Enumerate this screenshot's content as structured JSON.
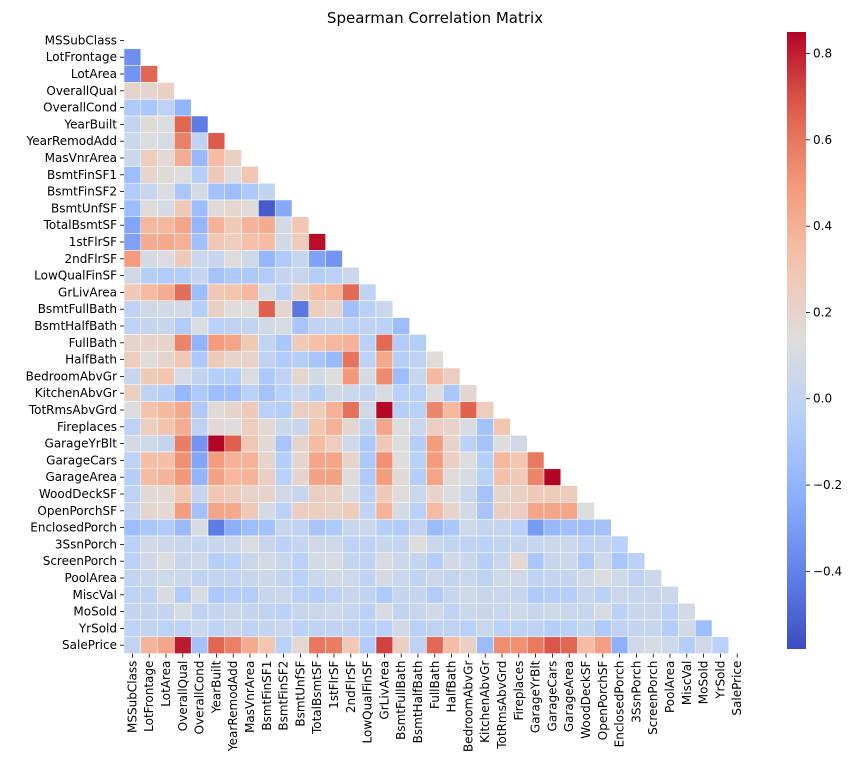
{
  "chart_data": {
    "type": "heatmap",
    "title": "Spearman Correlation Matrix",
    "mask": "upper-triangle-and-diagonal",
    "colormap": "coolwarm",
    "value_range": [
      -0.58,
      0.85
    ],
    "colorbar_ticks": [
      -0.4,
      -0.2,
      0.0,
      0.2,
      0.4,
      0.6,
      0.8
    ],
    "colorbar_tick_labels": [
      "−0.4",
      "−0.2",
      "0.0",
      "0.2",
      "0.4",
      "0.6",
      "0.8"
    ],
    "labels": [
      "MSSubClass",
      "LotFrontage",
      "LotArea",
      "OverallQual",
      "OverallCond",
      "YearBuilt",
      "YearRemodAdd",
      "MasVnrArea",
      "BsmtFinSF1",
      "BsmtFinSF2",
      "BsmtUnfSF",
      "TotalBsmtSF",
      "1stFlrSF",
      "2ndFlrSF",
      "LowQualFinSF",
      "GrLivArea",
      "BsmtFullBath",
      "BsmtHalfBath",
      "FullBath",
      "HalfBath",
      "BedroomAbvGr",
      "KitchenAbvGr",
      "TotRmsAbvGrd",
      "Fireplaces",
      "GarageYrBlt",
      "GarageCars",
      "GarageArea",
      "WoodDeckSF",
      "OpenPorchSF",
      "EnclosedPorch",
      "3SsnPorch",
      "ScreenPorch",
      "PoolArea",
      "MiscVal",
      "MoSold",
      "YrSold",
      "SalePrice"
    ],
    "rows": [
      [],
      [
        -0.35
      ],
      [
        -0.33,
        0.65
      ],
      [
        0.2,
        0.2,
        0.23
      ],
      [
        -0.08,
        -0.1,
        -0.02,
        -0.2
      ],
      [
        0.01,
        0.16,
        0.12,
        0.65,
        -0.42
      ],
      [
        0.05,
        0.12,
        0.1,
        0.57,
        0.0,
        0.68
      ],
      [
        0.05,
        0.25,
        0.17,
        0.41,
        -0.17,
        0.35,
        0.23
      ],
      [
        -0.15,
        0.19,
        0.16,
        0.14,
        -0.05,
        0.28,
        0.14,
        0.3
      ],
      [
        -0.07,
        0.03,
        0.12,
        -0.1,
        0.09,
        -0.13,
        -0.15,
        -0.09,
        0.0
      ],
      [
        -0.15,
        0.15,
        0.09,
        0.28,
        -0.15,
        0.16,
        0.19,
        0.15,
        -0.53,
        -0.25
      ],
      [
        -0.27,
        0.37,
        0.37,
        0.45,
        -0.19,
        0.39,
        0.27,
        0.38,
        0.42,
        0.09,
        0.3
      ],
      [
        -0.28,
        0.42,
        0.43,
        0.4,
        -0.14,
        0.29,
        0.25,
        0.33,
        0.35,
        0.08,
        0.26,
        0.83
      ],
      [
        0.48,
        0.09,
        0.12,
        0.27,
        0.04,
        0.03,
        0.15,
        0.06,
        -0.19,
        -0.08,
        0.03,
        -0.28,
        -0.33
      ],
      [
        0.07,
        -0.05,
        -0.07,
        -0.06,
        0.02,
        -0.12,
        -0.08,
        -0.09,
        -0.07,
        0.02,
        0.03,
        -0.06,
        -0.03,
        0.05
      ],
      [
        0.27,
        0.35,
        0.41,
        0.63,
        -0.15,
        0.29,
        0.31,
        0.37,
        0.1,
        -0.03,
        0.23,
        0.34,
        0.37,
        0.64,
        0.0
      ],
      [
        -0.01,
        0.07,
        0.08,
        0.09,
        -0.05,
        0.23,
        0.14,
        0.14,
        0.67,
        0.19,
        -0.44,
        0.25,
        0.2,
        -0.14,
        -0.04,
        0.04
      ],
      [
        -0.01,
        0.02,
        0.03,
        -0.07,
        0.12,
        -0.04,
        -0.01,
        0.01,
        0.08,
        0.1,
        -0.11,
        0.0,
        0.01,
        -0.04,
        -0.01,
        -0.03,
        -0.15
      ],
      [
        0.2,
        0.21,
        0.2,
        0.56,
        -0.2,
        0.49,
        0.45,
        0.28,
        0.01,
        -0.1,
        0.27,
        0.33,
        0.37,
        0.39,
        -0.04,
        0.64,
        -0.07,
        -0.06
      ],
      [
        0.25,
        0.15,
        0.2,
        0.29,
        -0.09,
        0.27,
        0.21,
        0.22,
        -0.01,
        -0.07,
        -0.06,
        -0.11,
        -0.17,
        0.61,
        -0.02,
        0.43,
        -0.05,
        -0.02,
        0.15
      ],
      [
        0.03,
        0.27,
        0.31,
        0.1,
        0.0,
        -0.05,
        -0.05,
        0.12,
        -0.09,
        -0.01,
        0.19,
        0.08,
        0.14,
        0.5,
        0.09,
        0.54,
        -0.15,
        0.03,
        0.36,
        0.24
      ],
      [
        0.23,
        -0.02,
        -0.05,
        -0.18,
        -0.08,
        -0.15,
        -0.14,
        -0.04,
        -0.12,
        -0.04,
        0.04,
        -0.05,
        0.07,
        0.05,
        0.01,
        0.1,
        -0.04,
        -0.04,
        0.14,
        -0.1,
        0.19
      ],
      [
        0.12,
        0.32,
        0.36,
        0.43,
        -0.08,
        0.16,
        0.2,
        0.27,
        -0.04,
        -0.06,
        0.24,
        0.26,
        0.39,
        0.62,
        0.07,
        0.84,
        -0.05,
        -0.04,
        0.55,
        0.36,
        0.66,
        0.25
      ],
      [
        -0.02,
        0.25,
        0.32,
        0.41,
        -0.02,
        0.17,
        0.14,
        0.25,
        0.17,
        0.05,
        0.03,
        0.3,
        0.4,
        0.19,
        0.0,
        0.44,
        0.13,
        0.04,
        0.24,
        0.21,
        0.11,
        -0.13,
        0.31
      ],
      [
        0.09,
        0.06,
        0.01,
        0.58,
        -0.33,
        0.85,
        0.67,
        0.28,
        0.17,
        -0.11,
        0.2,
        0.35,
        0.25,
        0.06,
        -0.09,
        0.28,
        0.13,
        -0.05,
        0.48,
        0.21,
        -0.03,
        -0.12,
        0.14,
        0.07
      ],
      [
        -0.01,
        0.34,
        0.34,
        0.52,
        -0.26,
        0.48,
        0.39,
        0.38,
        0.21,
        -0.06,
        0.19,
        0.44,
        0.44,
        0.21,
        -0.09,
        0.52,
        0.14,
        -0.04,
        0.49,
        0.23,
        0.14,
        -0.05,
        0.37,
        0.3,
        0.59
      ],
      [
        -0.05,
        0.35,
        0.38,
        0.5,
        -0.2,
        0.46,
        0.37,
        0.38,
        0.24,
        -0.04,
        0.2,
        0.46,
        0.46,
        0.15,
        -0.08,
        0.48,
        0.16,
        -0.06,
        0.45,
        0.15,
        0.1,
        -0.04,
        0.33,
        0.27,
        0.56,
        0.85
      ],
      [
        -0.02,
        0.16,
        0.17,
        0.3,
        0.02,
        0.29,
        0.26,
        0.21,
        0.2,
        0.07,
        0.03,
        0.24,
        0.23,
        0.11,
        -0.03,
        0.27,
        0.15,
        0.04,
        0.21,
        0.12,
        0.04,
        -0.12,
        0.19,
        0.23,
        0.27,
        0.26,
        0.26
      ],
      [
        0.02,
        0.19,
        0.17,
        0.48,
        -0.13,
        0.45,
        0.43,
        0.28,
        0.09,
        -0.03,
        0.24,
        0.25,
        0.22,
        0.26,
        0.0,
        0.38,
        0.09,
        -0.04,
        0.35,
        0.2,
        0.08,
        -0.11,
        0.24,
        0.24,
        0.44,
        0.45,
        0.44,
        0.13
      ],
      [
        -0.15,
        -0.1,
        -0.07,
        -0.16,
        0.11,
        -0.42,
        -0.23,
        -0.15,
        -0.13,
        0.03,
        0.0,
        -0.11,
        -0.08,
        0.03,
        0.05,
        -0.05,
        -0.07,
        -0.01,
        -0.16,
        -0.1,
        0.06,
        0.02,
        0.02,
        -0.03,
        -0.31,
        -0.18,
        -0.14,
        -0.14,
        -0.13
      ],
      [
        -0.04,
        0.08,
        0.05,
        0.03,
        0.02,
        0.03,
        0.05,
        0.12,
        0.03,
        -0.03,
        0.02,
        0.07,
        0.06,
        -0.02,
        -0.01,
        0.03,
        0.02,
        0.14,
        0.04,
        0.01,
        -0.02,
        -0.03,
        0.01,
        0.02,
        0.03,
        0.05,
        0.05,
        -0.02,
        0.01,
        -0.04
      ],
      [
        -0.03,
        0.07,
        0.12,
        0.03,
        0.07,
        -0.05,
        -0.04,
        0.04,
        0.09,
        0.04,
        -0.04,
        0.09,
        0.1,
        0.01,
        0.0,
        0.1,
        0.05,
        0.02,
        -0.06,
        0.08,
        0.04,
        -0.05,
        0.04,
        0.18,
        -0.1,
        0.03,
        0.05,
        -0.08,
        0.06,
        -0.1,
        -0.03
      ],
      [
        0.01,
        0.05,
        0.06,
        0.05,
        0.0,
        0.01,
        0.01,
        0.03,
        0.05,
        0.02,
        -0.03,
        0.05,
        0.08,
        0.06,
        0.0,
        0.09,
        0.04,
        0.0,
        0.04,
        0.01,
        0.04,
        -0.01,
        0.06,
        0.07,
        0.0,
        0.02,
        0.02,
        0.07,
        0.12,
        0.06,
        -0.01,
        0.05
      ],
      [
        -0.02,
        0.0,
        0.11,
        -0.07,
        0.11,
        -0.09,
        -0.06,
        -0.06,
        0.03,
        0.05,
        -0.04,
        -0.06,
        -0.01,
        0.03,
        0.0,
        -0.08,
        0.02,
        0.02,
        -0.07,
        0.03,
        0.06,
        0.03,
        0.04,
        0.03,
        -0.08,
        -0.06,
        -0.05,
        0.03,
        -0.03,
        0.04,
        0.03,
        0.03,
        0.04
      ],
      [
        0.02,
        0.02,
        0.02,
        0.1,
        -0.01,
        0.02,
        0.04,
        0.02,
        -0.01,
        -0.03,
        0.03,
        0.04,
        0.06,
        0.03,
        -0.03,
        0.1,
        0.0,
        0.03,
        0.08,
        0.0,
        0.05,
        0.03,
        0.04,
        0.06,
        0.03,
        0.06,
        0.04,
        0.03,
        0.1,
        -0.03,
        0.03,
        0.04,
        -0.03,
        0.09
      ],
      [
        -0.02,
        0.01,
        -0.02,
        -0.02,
        0.05,
        -0.02,
        0.03,
        -0.01,
        0.02,
        0.04,
        -0.03,
        -0.01,
        0.0,
        -0.01,
        -0.03,
        -0.03,
        0.08,
        -0.04,
        -0.01,
        -0.01,
        -0.04,
        0.04,
        -0.03,
        -0.02,
        -0.01,
        -0.05,
        -0.04,
        0.02,
        -0.08,
        -0.01,
        0.02,
        0.03,
        -0.06,
        0.08,
        -0.15
      ],
      [
        0.01,
        0.38,
        0.44,
        0.81,
        -0.13,
        0.65,
        0.57,
        0.42,
        0.3,
        -0.04,
        0.18,
        0.6,
        0.58,
        0.29,
        -0.07,
        0.73,
        0.23,
        -0.01,
        0.64,
        0.34,
        0.23,
        -0.16,
        0.53,
        0.52,
        0.59,
        0.69,
        0.65,
        0.35,
        0.47,
        -0.22,
        0.07,
        0.1,
        0.06,
        -0.06,
        0.07,
        -0.03
      ]
    ]
  }
}
